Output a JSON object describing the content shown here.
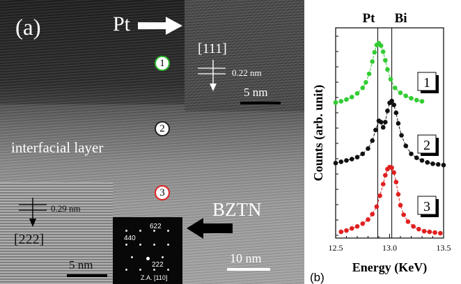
{
  "panel_a": {
    "label": "(a)",
    "pt_label": "Pt",
    "bztn_label": "BZTN",
    "interfacial_label": "interfacial layer",
    "pt_inset": {
      "direction": "[111]",
      "spacing": "0.22 nm",
      "scale": "5 nm"
    },
    "bztn_inset": {
      "direction": "[222]",
      "spacing": "0.29 nm",
      "scale": "5 nm"
    },
    "saed": {
      "spots": [
        "622",
        "440",
        "222"
      ],
      "zone_axis": "Z.A. [110]"
    },
    "main_scale": "10 nm",
    "positions": [
      {
        "number": "1",
        "color": "#2db82d"
      },
      {
        "number": "2",
        "color": "#222222"
      },
      {
        "number": "3",
        "color": "#e02020"
      }
    ]
  },
  "panel_b": {
    "label": "(b)",
    "element_lines": [
      "Pt",
      "Bi"
    ],
    "boxes": [
      "1",
      "2",
      "3"
    ]
  },
  "chart_data": {
    "type": "line",
    "xlabel": "Energy (KeV)",
    "ylabel": "Counts (arb. unit)",
    "xlim": [
      12.5,
      13.5
    ],
    "x_ticks": [
      "12.5",
      "13.0",
      "13.5"
    ],
    "vlines": [
      {
        "label": "Pt",
        "x": 12.89
      },
      {
        "label": "Bi",
        "x": 13.02
      }
    ],
    "series": [
      {
        "color": "#33cc33",
        "x": [
          12.5,
          12.55,
          12.6,
          12.65,
          12.7,
          12.75,
          12.78,
          12.81,
          12.84,
          12.86,
          12.88,
          12.9,
          12.92,
          12.94,
          12.96,
          12.98,
          13.01,
          13.05,
          13.1,
          13.15,
          13.2,
          13.25,
          13.3
        ],
        "y": [
          0.03,
          0.05,
          0.08,
          0.12,
          0.18,
          0.27,
          0.36,
          0.5,
          0.7,
          0.85,
          0.97,
          1.0,
          0.96,
          0.86,
          0.72,
          0.57,
          0.41,
          0.27,
          0.19,
          0.14,
          0.1,
          0.07,
          0.05
        ]
      },
      {
        "color": "#111111",
        "x": [
          12.5,
          12.55,
          12.6,
          12.65,
          12.7,
          12.75,
          12.8,
          12.84,
          12.87,
          12.9,
          12.92,
          12.94,
          12.96,
          12.98,
          13.0,
          13.02,
          13.04,
          13.06,
          13.08,
          13.11,
          13.15,
          13.2,
          13.25,
          13.3,
          13.35,
          13.4,
          13.45,
          13.5
        ],
        "y": [
          0.06,
          0.08,
          0.1,
          0.12,
          0.15,
          0.2,
          0.28,
          0.4,
          0.56,
          0.7,
          0.68,
          0.6,
          0.68,
          0.85,
          0.97,
          1.0,
          0.94,
          0.82,
          0.66,
          0.48,
          0.32,
          0.2,
          0.14,
          0.1,
          0.07,
          0.05,
          0.04,
          0.03
        ]
      },
      {
        "color": "#e02020",
        "x": [
          12.55,
          12.6,
          12.65,
          12.7,
          12.75,
          12.8,
          12.84,
          12.88,
          12.91,
          12.94,
          12.96,
          12.98,
          13.0,
          13.02,
          13.04,
          13.06,
          13.08,
          13.1,
          13.13,
          13.17,
          13.22,
          13.27,
          13.32,
          13.37,
          13.42,
          13.47
        ],
        "y": [
          0.05,
          0.07,
          0.1,
          0.13,
          0.17,
          0.23,
          0.31,
          0.42,
          0.58,
          0.75,
          0.88,
          0.97,
          1.0,
          0.99,
          0.92,
          0.78,
          0.6,
          0.44,
          0.3,
          0.2,
          0.13,
          0.09,
          0.06,
          0.05,
          0.04,
          0.03
        ]
      }
    ]
  }
}
